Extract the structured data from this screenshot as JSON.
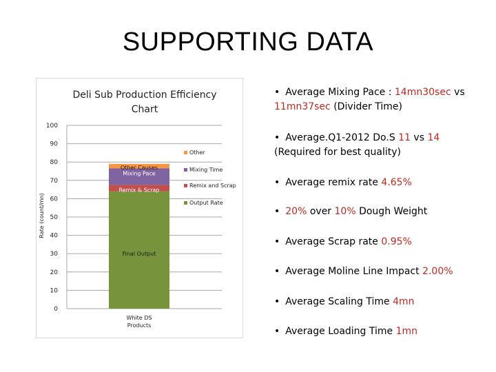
{
  "slide": {
    "title": "SUPPORTING DATA"
  },
  "chart_data": {
    "type": "bar",
    "stacked": true,
    "title": "Deli Sub Production Efficiency Chart",
    "title_lines": [
      "Deli Sub Production Efficiency",
      "Chart"
    ],
    "ylabel": "Rate (count/mn)",
    "xlabel": "",
    "ylim": [
      0,
      100
    ],
    "yticks": [
      0,
      10,
      20,
      30,
      40,
      50,
      60,
      70,
      80,
      90,
      100
    ],
    "categories": [
      "White DS Products"
    ],
    "category_lines": [
      "White DS",
      "Products"
    ],
    "grid": true,
    "legend_position": "right",
    "series": [
      {
        "name": "Output Rate",
        "values": [
          64
        ],
        "color": "#77933c",
        "label": "Final Output"
      },
      {
        "name": "Remix and Scrap",
        "values": [
          3.5
        ],
        "color": "#c0504d",
        "label": "Remix & Scrap"
      },
      {
        "name": "Mixing Time",
        "values": [
          9
        ],
        "color": "#8064a2",
        "label": "Mixing Pace"
      },
      {
        "name": "Other",
        "values": [
          2.5
        ],
        "color": "#f79646",
        "label": "Other Causes"
      }
    ]
  },
  "bullets": [
    {
      "parts": [
        {
          "t": "Average Mixing Pace : "
        },
        {
          "t": "14mn30sec",
          "hl": true
        },
        {
          "t": " vs "
        },
        {
          "t": "11mn37sec",
          "hl": true
        },
        {
          "t": " (Divider Time)"
        }
      ]
    },
    {
      "parts": [
        {
          "t": "Average.Q1-2012 Do.S "
        },
        {
          "t": "11",
          "hl": true
        },
        {
          "t": " vs "
        },
        {
          "t": "14",
          "hl": true
        },
        {
          "t": " (Required for best quality)"
        }
      ]
    },
    {
      "parts": [
        {
          "t": "Average remix rate "
        },
        {
          "t": "4.65%",
          "hl": true
        }
      ]
    },
    {
      "parts": [
        {
          "t": "20%",
          "hl": true
        },
        {
          "t": " over "
        },
        {
          "t": "10%",
          "hl": true
        },
        {
          "t": " Dough Weight"
        }
      ]
    },
    {
      "parts": [
        {
          "t": "Average Scrap rate "
        },
        {
          "t": "0.95%",
          "hl": true
        }
      ]
    },
    {
      "parts": [
        {
          "t": "Average Moline Line Impact "
        },
        {
          "t": "2.00%",
          "hl": true
        }
      ]
    },
    {
      "parts": [
        {
          "t": "Average Scaling Time "
        },
        {
          "t": "4mn",
          "hl": true
        }
      ]
    },
    {
      "parts": [
        {
          "t": "Average Loading Time "
        },
        {
          "t": "1mn",
          "hl": true
        }
      ]
    }
  ]
}
